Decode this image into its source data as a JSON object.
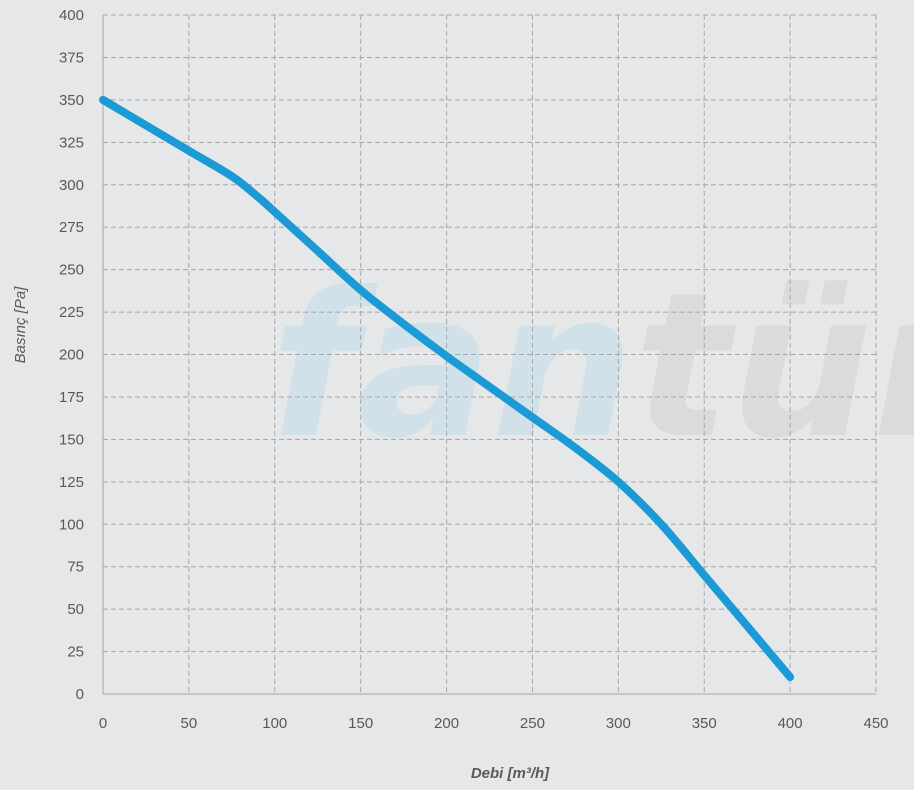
{
  "chart_data": {
    "type": "line",
    "title": "",
    "xlabel": "Debi [m³/h]",
    "ylabel": "Basınç [Pa]",
    "xlim": [
      0,
      450
    ],
    "ylim": [
      0,
      400
    ],
    "x_ticks": [
      0,
      50,
      100,
      150,
      200,
      250,
      300,
      350,
      400,
      450
    ],
    "y_ticks": [
      0,
      25,
      50,
      75,
      100,
      125,
      150,
      175,
      200,
      225,
      250,
      275,
      300,
      325,
      350,
      375,
      400
    ],
    "grid": true,
    "legend": "none",
    "series": [
      {
        "color": "#1b9ad6",
        "x": [
          0,
          25,
          50,
          75,
          90,
          100,
          125,
          150,
          175,
          200,
          225,
          250,
          275,
          300,
          325,
          350,
          375,
          400
        ],
        "y": [
          350,
          335,
          320,
          305,
          293,
          284,
          261,
          238,
          218,
          199,
          181,
          163,
          145,
          125,
          100,
          70,
          40,
          10
        ]
      }
    ],
    "watermark": {
      "text": "fantürk",
      "colors": [
        "#cbe0ea",
        "#d6d7d9"
      ]
    }
  }
}
